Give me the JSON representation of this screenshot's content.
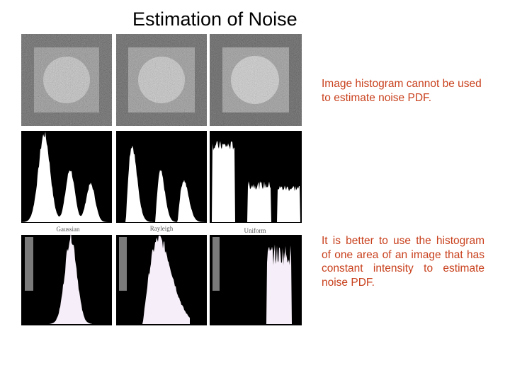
{
  "slide": {
    "title": "Estimation of Noise",
    "note_1": "Image histogram cannot be used to estimate noise PDF.",
    "note_2": "It is better to use the histogram of one area of an image that has constant intensity to estimate noise PDF."
  },
  "figure": {
    "captions": [
      "Gaussian",
      "Rayleigh",
      "Uniform"
    ],
    "colors": {
      "title_text": "#000000",
      "note_text": "#c8401c",
      "panel_background": "#000000",
      "histogram_fill": "#ffffff",
      "roi_histogram_fill": "#f6eef8"
    }
  }
}
